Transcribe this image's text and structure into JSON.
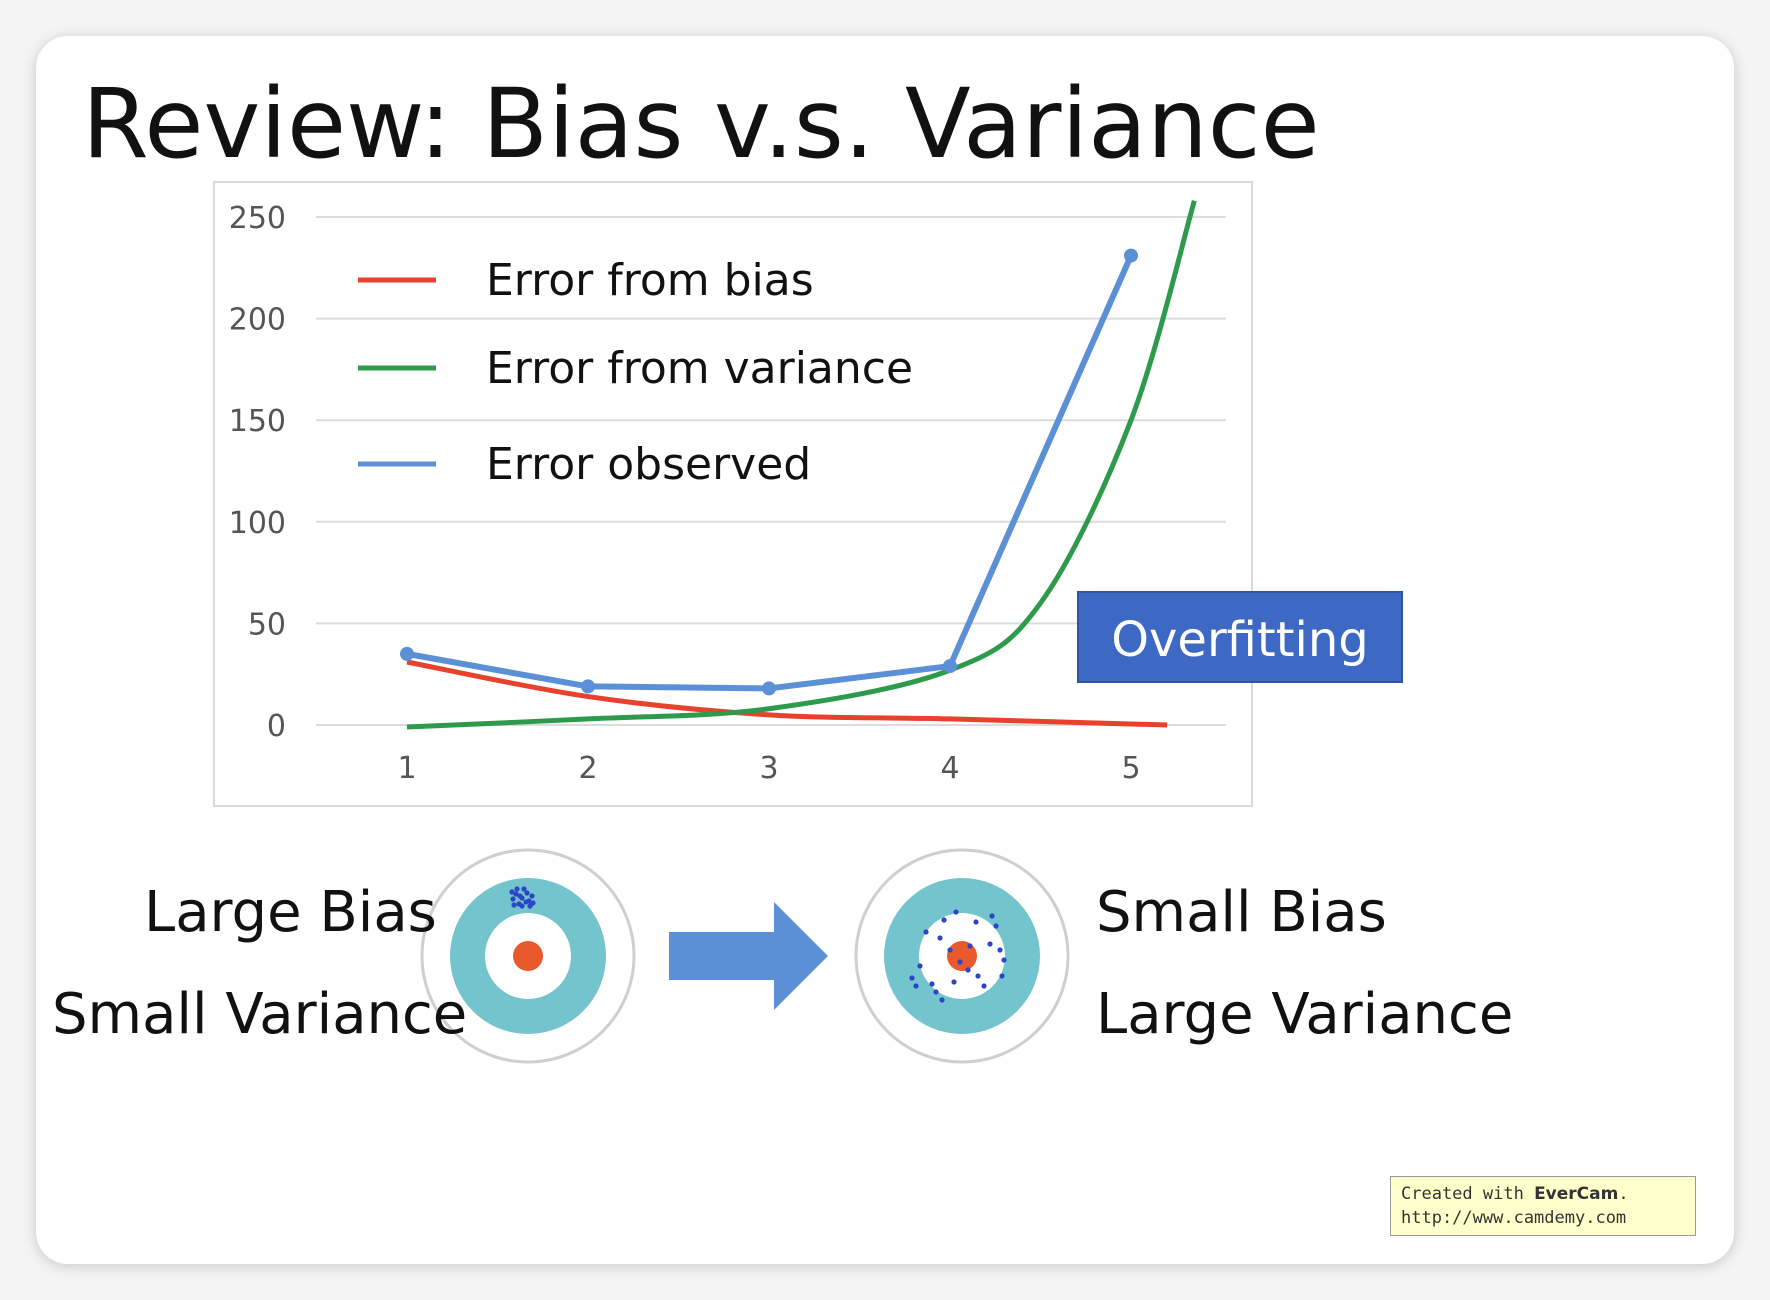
{
  "title": "Review: Bias v.s. Variance",
  "chart_data": {
    "type": "line",
    "x": [
      1,
      2,
      3,
      4,
      5
    ],
    "ylim": [
      0,
      250
    ],
    "yticks": [
      "250",
      "200",
      "150",
      "100",
      "50",
      "0"
    ],
    "xticks": [
      "1",
      "2",
      "3",
      "4",
      "5"
    ],
    "grid": true,
    "legend_position": "top-left",
    "series": [
      {
        "name": "Error from bias",
        "color": "#e8412c",
        "x": [
          1,
          2,
          3,
          4,
          5.2
        ],
        "values": [
          31,
          14,
          5,
          3,
          0
        ]
      },
      {
        "name": "Error from variance",
        "color": "#2e9a4c",
        "x": [
          1,
          2,
          3,
          4,
          4.5,
          5,
          5.35
        ],
        "values": [
          -1,
          3,
          8,
          27,
          60,
          150,
          258
        ]
      },
      {
        "name": "Error observed",
        "color": "#5b8fd6",
        "markers": true,
        "x": [
          1,
          2,
          3,
          4,
          5
        ],
        "values": [
          35,
          19,
          18,
          29,
          231
        ]
      }
    ],
    "annotation": {
      "text": "Overfitting",
      "color": "#3d68c4"
    }
  },
  "targets": {
    "left_top": "Large Bias",
    "left_bottom": "Small Variance",
    "right_top": "Small Bias",
    "right_bottom": "Large Variance",
    "colors": {
      "ring": "#73c4cc",
      "bull": "#e8592c",
      "dots": "#2b46c7",
      "arrow": "#5b8fd6"
    }
  },
  "watermark": {
    "prefix": "Created with ",
    "brand": "EverCam",
    "suffix": ".",
    "url": "http://www.camdemy.com"
  }
}
